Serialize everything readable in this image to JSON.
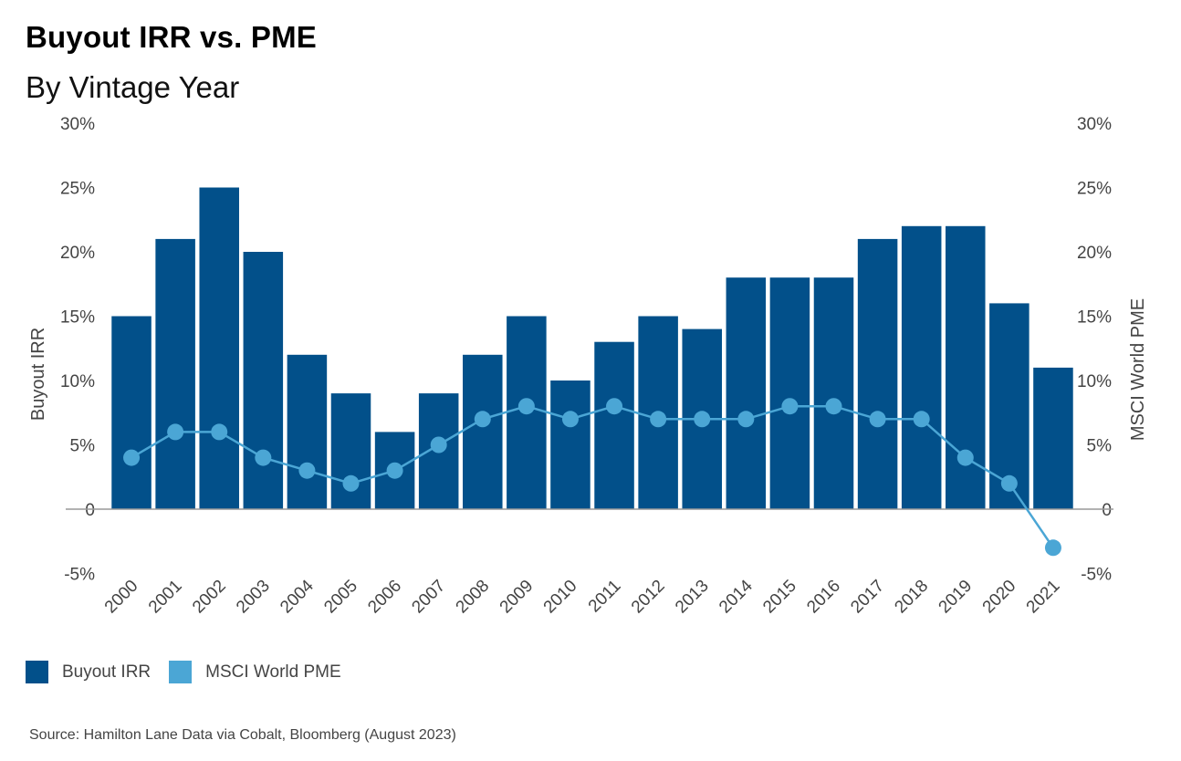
{
  "title": "Buyout IRR vs. PME",
  "subtitle": "By Vintage Year",
  "source": "Source: Hamilton Lane Data via Cobalt, Bloomberg (August 2023)",
  "colors": {
    "bar": "#02508A",
    "line": "#4BA6D5",
    "axis_text": "#444444",
    "baseline": "#999999"
  },
  "chart_data": {
    "type": "bar",
    "categories": [
      "2000",
      "2001",
      "2002",
      "2003",
      "2004",
      "2005",
      "2006",
      "2007",
      "2008",
      "2009",
      "2010",
      "2011",
      "2012",
      "2013",
      "2014",
      "2015",
      "2016",
      "2017",
      "2018",
      "2019",
      "2020",
      "2021"
    ],
    "series": [
      {
        "name": "Buyout IRR",
        "type": "bar",
        "axis": "left",
        "values": [
          15,
          21,
          25,
          20,
          12,
          9,
          6,
          9,
          12,
          15,
          10,
          13,
          15,
          14,
          18,
          18,
          18,
          21,
          22,
          22,
          16,
          11
        ]
      },
      {
        "name": "MSCI World PME",
        "type": "line",
        "axis": "right",
        "values": [
          4,
          6,
          6,
          4,
          3,
          2,
          3,
          5,
          7,
          8,
          7,
          8,
          7,
          7,
          7,
          8,
          8,
          7,
          7,
          4,
          2,
          -3
        ]
      }
    ],
    "ylabel_left": "Buyout IRR",
    "ylabel_right": "MSCI World PME",
    "ylim": [
      -5,
      30
    ],
    "yticks": [
      "-5%",
      "0",
      "5%",
      "10%",
      "15%",
      "20%",
      "25%",
      "30%"
    ],
    "ytick_values": [
      -5,
      0,
      5,
      10,
      15,
      20,
      25,
      30
    ],
    "grid": false,
    "legend": "bottom-left"
  }
}
